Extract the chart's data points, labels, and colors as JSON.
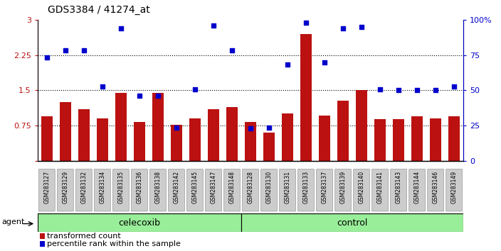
{
  "title": "GDS3384 / 41274_at",
  "samples": [
    "GSM283127",
    "GSM283129",
    "GSM283132",
    "GSM283134",
    "GSM283135",
    "GSM283136",
    "GSM283138",
    "GSM283142",
    "GSM283145",
    "GSM283147",
    "GSM283148",
    "GSM283128",
    "GSM283130",
    "GSM283131",
    "GSM283133",
    "GSM283137",
    "GSM283139",
    "GSM283140",
    "GSM283141",
    "GSM283143",
    "GSM283144",
    "GSM283146",
    "GSM283149"
  ],
  "bar_values": [
    0.95,
    1.25,
    1.1,
    0.9,
    1.45,
    0.82,
    1.45,
    0.76,
    0.9,
    1.1,
    1.15,
    0.82,
    0.6,
    1.0,
    2.7,
    0.96,
    1.28,
    1.5,
    0.88,
    0.88,
    0.95,
    0.9,
    0.95
  ],
  "dot_values": [
    2.2,
    2.35,
    2.35,
    1.58,
    2.82,
    1.38,
    1.38,
    0.7,
    1.52,
    2.88,
    2.35,
    0.69,
    0.7,
    2.05,
    2.95,
    2.1,
    2.82,
    2.85,
    1.52,
    1.5,
    1.5,
    1.5,
    1.58
  ],
  "celecoxib_count": 11,
  "control_count": 12,
  "bar_color": "#bb1111",
  "dot_color": "#0000cc",
  "left_yticks": [
    0,
    0.75,
    1.5,
    2.25,
    3
  ],
  "right_yticks": [
    0,
    25,
    50,
    75,
    100
  ],
  "ylim_left": [
    0,
    3
  ],
  "ylim_right": [
    0,
    100
  ],
  "dotted_line_vals": [
    0.75,
    1.5,
    2.25
  ],
  "agent_label": "agent",
  "celecoxib_label": "celecoxib",
  "control_label": "control",
  "legend_bar_label": "transformed count",
  "legend_dot_label": "percentile rank within the sample",
  "group_bar_color": "#99ee99",
  "xlabel_bg_color": "#cccccc",
  "bg_color": "#ffffff"
}
